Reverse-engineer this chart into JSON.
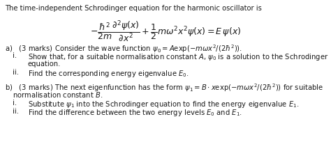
{
  "title_line": "The time-independent Schrodinger equation for the harmonic oscillator is",
  "equation": "$-\\dfrac{\\hbar^2}{2m}\\dfrac{\\partial^2\\psi(x)}{\\partial x^2} + \\dfrac{1}{2}m\\omega^2 x^2\\psi(x) = E\\,\\psi(x)$",
  "bg_color": "#ffffff",
  "text_color": "#1a1a1a",
  "fontsize": 7.2,
  "eq_fontsize": 9.0,
  "fig_width": 4.74,
  "fig_height": 2.14,
  "dpi": 100
}
